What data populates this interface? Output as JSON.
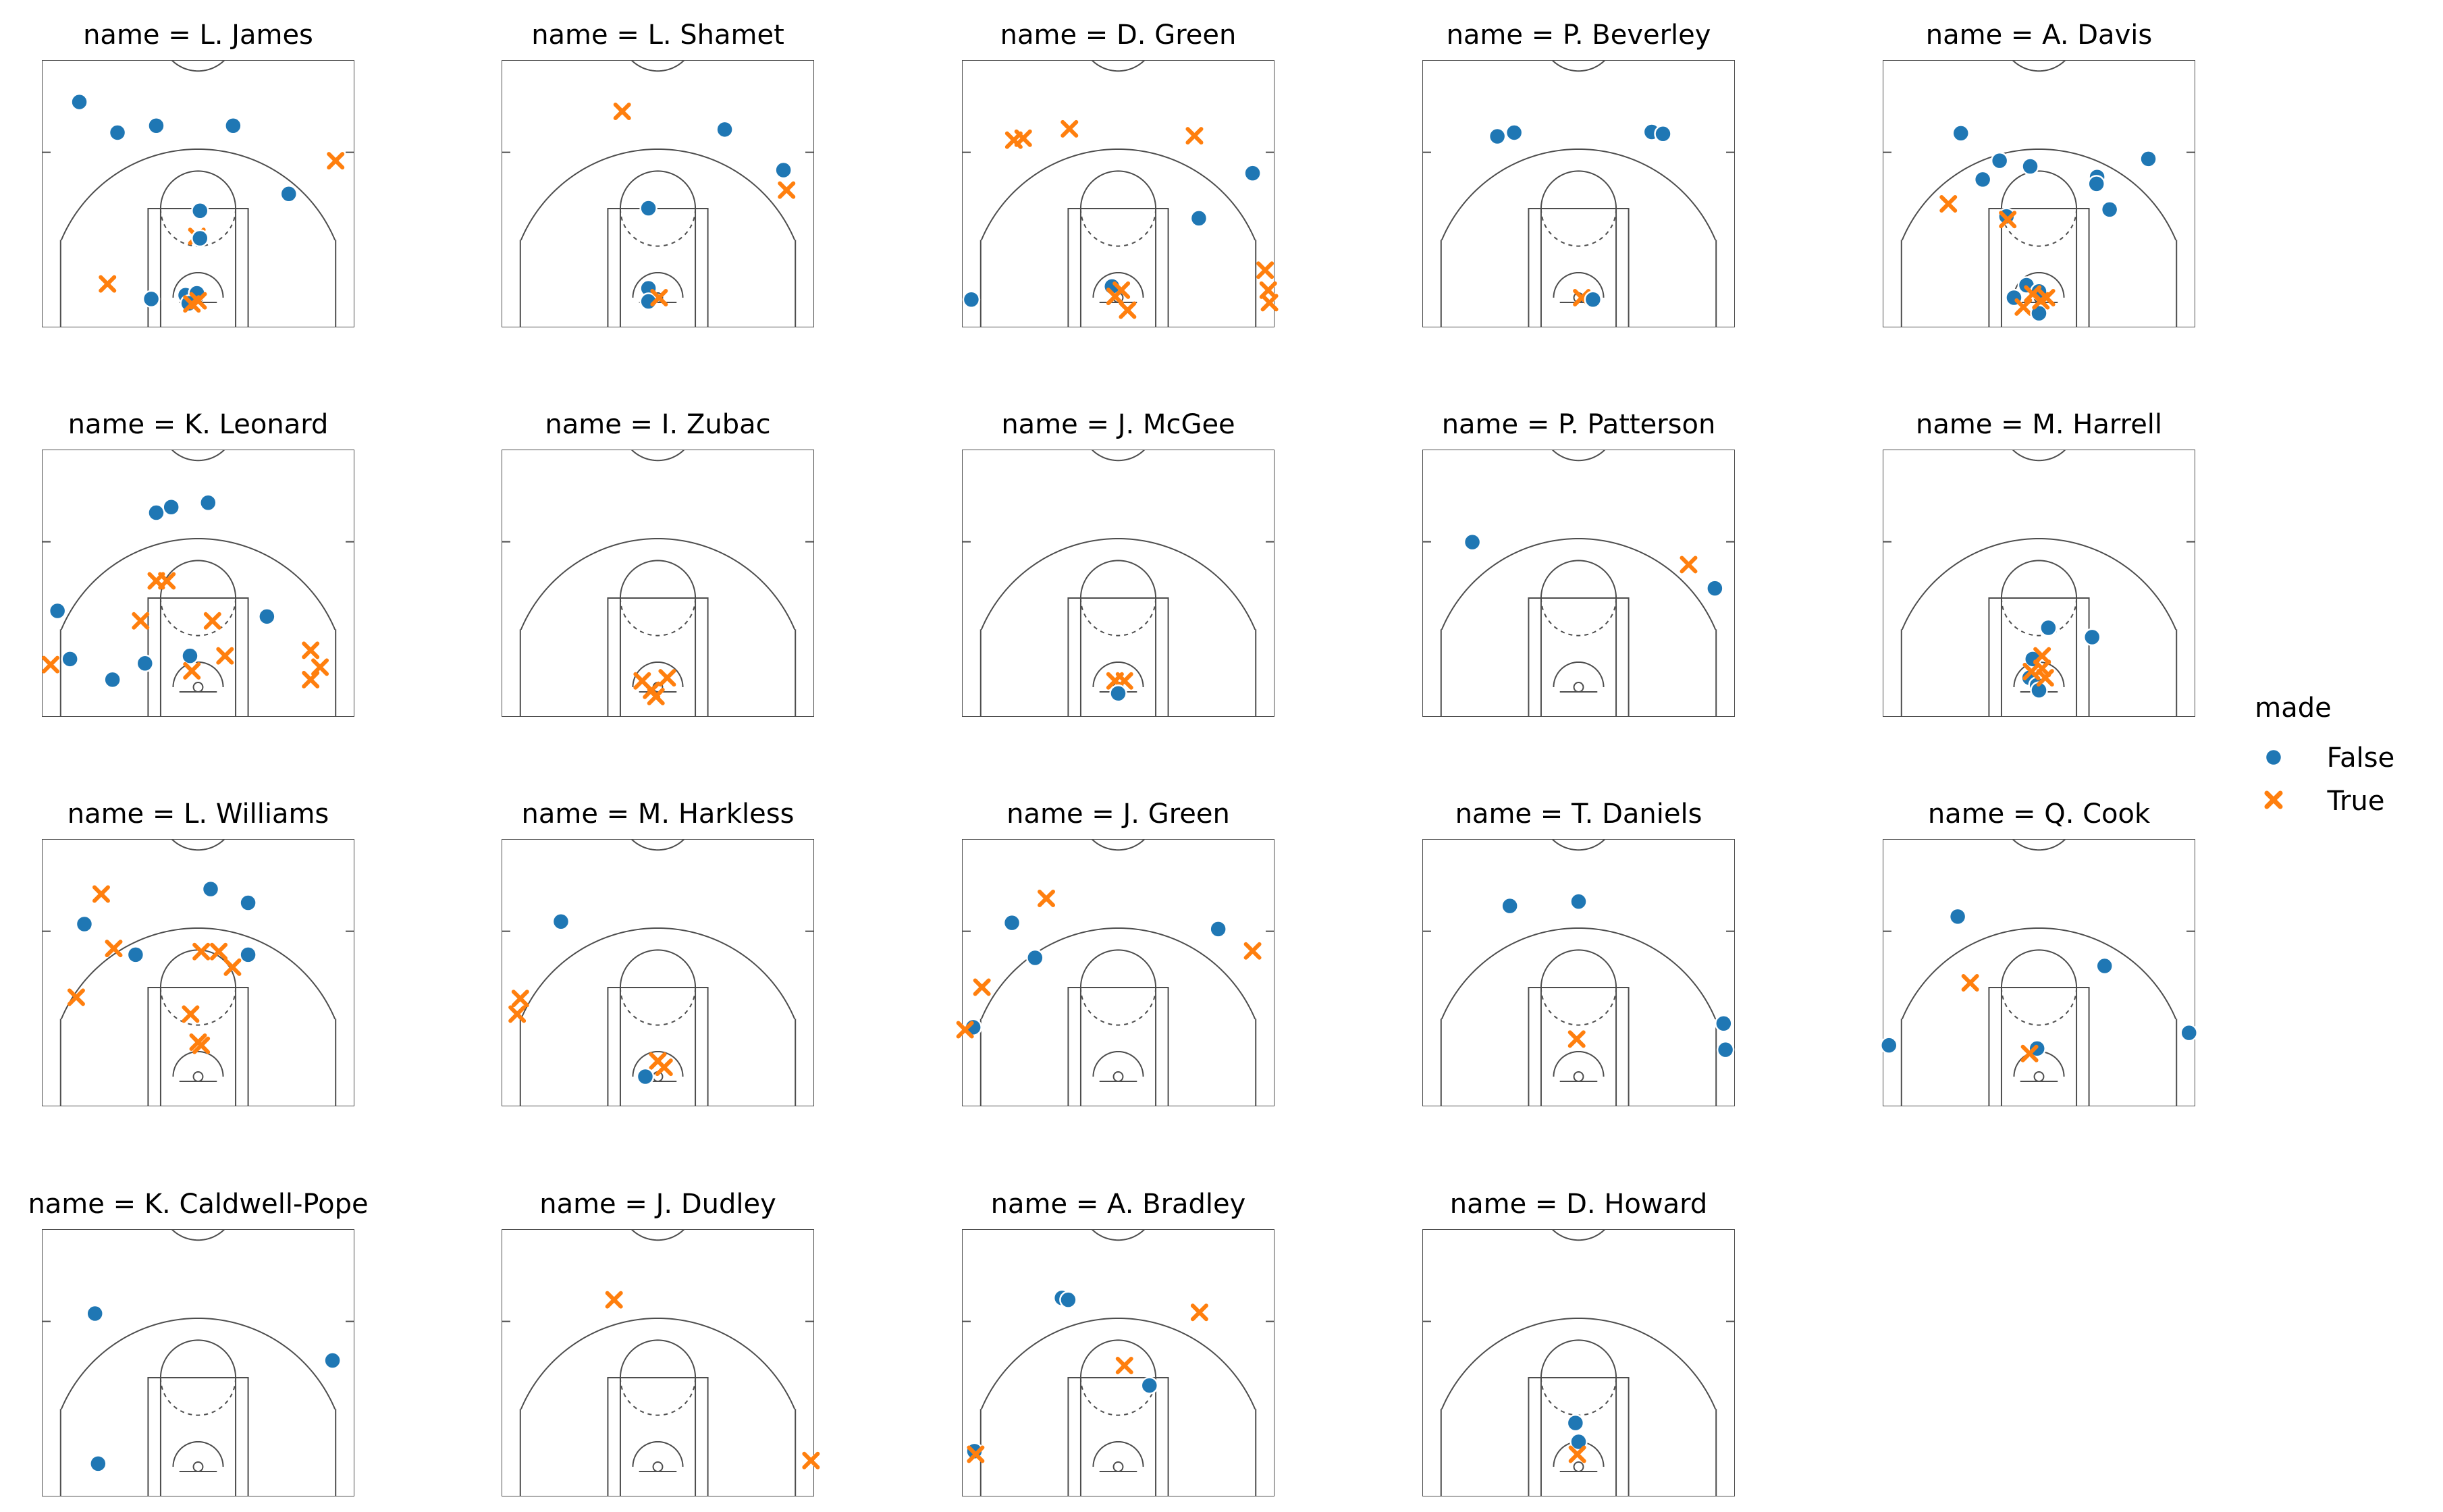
{
  "colors": {
    "False": "#1f77b4",
    "True": "#ff7f0e",
    "court_line": "#4d4d4d"
  },
  "legend": {
    "title": "made",
    "entries": [
      {
        "label": "False",
        "marker": "circle",
        "color": "#1f77b4"
      },
      {
        "label": "True",
        "marker": "x",
        "color": "#ff7f0e"
      }
    ]
  },
  "chart_data": {
    "type": "scatter",
    "facet_by": "name",
    "hue": "made",
    "marker_style": {
      "False": "circle",
      "True": "x"
    },
    "axes_visible": false,
    "grid": false,
    "legend_position": "right",
    "xlim": [
      -250,
      250
    ],
    "ylim": [
      -47.5,
      380
    ],
    "panels": [
      {
        "title": "name = L. James",
        "points": [
          {
            "x": -190,
            "y": 313,
            "made": false
          },
          {
            "x": -129,
            "y": 264,
            "made": false
          },
          {
            "x": -67,
            "y": 275,
            "made": false
          },
          {
            "x": 56,
            "y": 275,
            "made": false
          },
          {
            "x": 145,
            "y": 166,
            "made": false
          },
          {
            "x": 220,
            "y": 219,
            "made": true
          },
          {
            "x": 3,
            "y": 139,
            "made": false
          },
          {
            "x": -2,
            "y": 98,
            "made": true
          },
          {
            "x": 3,
            "y": 95,
            "made": false
          },
          {
            "x": -145,
            "y": 22,
            "made": true
          },
          {
            "x": -75,
            "y": -2,
            "made": false
          },
          {
            "x": -20,
            "y": 4,
            "made": false
          },
          {
            "x": -2,
            "y": 7,
            "made": false
          },
          {
            "x": -15,
            "y": -9,
            "made": false
          },
          {
            "x": -10,
            "y": -10,
            "made": true
          },
          {
            "x": 0,
            "y": -5,
            "made": true
          }
        ]
      },
      {
        "title": "name = L. Shamet",
        "points": [
          {
            "x": -57,
            "y": 298,
            "made": true
          },
          {
            "x": 107,
            "y": 269,
            "made": false
          },
          {
            "x": 201,
            "y": 204,
            "made": false
          },
          {
            "x": 206,
            "y": 172,
            "made": true
          },
          {
            "x": -15,
            "y": 143,
            "made": false
          },
          {
            "x": -15,
            "y": 15,
            "made": false
          },
          {
            "x": -15,
            "y": -6,
            "made": false
          },
          {
            "x": 2,
            "y": 0,
            "made": true
          }
        ]
      },
      {
        "title": "name = D. Green",
        "points": [
          {
            "x": -167,
            "y": 252,
            "made": true
          },
          {
            "x": -152,
            "y": 255,
            "made": true
          },
          {
            "x": -78,
            "y": 270,
            "made": true
          },
          {
            "x": 122,
            "y": 259,
            "made": true
          },
          {
            "x": 215,
            "y": 199,
            "made": false
          },
          {
            "x": 129,
            "y": 127,
            "made": false
          },
          {
            "x": -235,
            "y": -3,
            "made": false
          },
          {
            "x": 235,
            "y": 44,
            "made": true
          },
          {
            "x": 240,
            "y": 12,
            "made": true
          },
          {
            "x": 242,
            "y": -8,
            "made": true
          },
          {
            "x": -10,
            "y": 18,
            "made": false
          },
          {
            "x": 5,
            "y": 12,
            "made": true
          },
          {
            "x": -5,
            "y": 2,
            "made": true
          },
          {
            "x": 15,
            "y": -20,
            "made": true
          }
        ]
      },
      {
        "title": "name = P. Beverley",
        "points": [
          {
            "x": -130,
            "y": 258,
            "made": false
          },
          {
            "x": -103,
            "y": 264,
            "made": false
          },
          {
            "x": 117,
            "y": 265,
            "made": false
          },
          {
            "x": 135,
            "y": 262,
            "made": false
          },
          {
            "x": 5,
            "y": 0,
            "made": true
          },
          {
            "x": 23,
            "y": -3,
            "made": false
          }
        ]
      },
      {
        "title": "name = A. Davis",
        "points": [
          {
            "x": -125,
            "y": 263,
            "made": false
          },
          {
            "x": -63,
            "y": 219,
            "made": false
          },
          {
            "x": -90,
            "y": 189,
            "made": false
          },
          {
            "x": -14,
            "y": 210,
            "made": false
          },
          {
            "x": 93,
            "y": 193,
            "made": false
          },
          {
            "x": 92,
            "y": 182,
            "made": false
          },
          {
            "x": 175,
            "y": 222,
            "made": false
          },
          {
            "x": 113,
            "y": 141,
            "made": false
          },
          {
            "x": -145,
            "y": 150,
            "made": true
          },
          {
            "x": -52,
            "y": 130,
            "made": false
          },
          {
            "x": -50,
            "y": 125,
            "made": true
          },
          {
            "x": -40,
            "y": 0,
            "made": false
          },
          {
            "x": -20,
            "y": 20,
            "made": false
          },
          {
            "x": 0,
            "y": 10,
            "made": false
          },
          {
            "x": 12,
            "y": 0,
            "made": true
          },
          {
            "x": -25,
            "y": -15,
            "made": true
          },
          {
            "x": 0,
            "y": -25,
            "made": false
          },
          {
            "x": -10,
            "y": 6,
            "made": true
          },
          {
            "x": 3,
            "y": -5,
            "made": true
          }
        ]
      },
      {
        "title": "name = K. Leonard",
        "points": [
          {
            "x": -67,
            "y": 279,
            "made": false
          },
          {
            "x": -43,
            "y": 288,
            "made": false
          },
          {
            "x": 16,
            "y": 295,
            "made": false
          },
          {
            "x": -67,
            "y": 170,
            "made": true
          },
          {
            "x": -50,
            "y": 170,
            "made": true
          },
          {
            "x": -225,
            "y": 122,
            "made": false
          },
          {
            "x": -205,
            "y": 45,
            "made": false
          },
          {
            "x": -236,
            "y": 36,
            "made": true
          },
          {
            "x": -92,
            "y": 106,
            "made": true
          },
          {
            "x": 23,
            "y": 106,
            "made": true
          },
          {
            "x": 110,
            "y": 113,
            "made": false
          },
          {
            "x": -85,
            "y": 38,
            "made": false
          },
          {
            "x": -13,
            "y": 50,
            "made": false
          },
          {
            "x": 43,
            "y": 50,
            "made": true
          },
          {
            "x": -10,
            "y": 26,
            "made": true
          },
          {
            "x": -137,
            "y": 12,
            "made": false
          },
          {
            "x": 180,
            "y": 59,
            "made": true
          },
          {
            "x": 195,
            "y": 32,
            "made": true
          },
          {
            "x": 180,
            "y": 12,
            "made": true
          }
        ]
      },
      {
        "title": "name = I. Zubac",
        "points": [
          {
            "x": -25,
            "y": 10,
            "made": true
          },
          {
            "x": 15,
            "y": 15,
            "made": true
          },
          {
            "x": -10,
            "y": -5,
            "made": true
          },
          {
            "x": -3,
            "y": -15,
            "made": true
          }
        ]
      },
      {
        "title": "name = J. McGee",
        "points": [
          {
            "x": -5,
            "y": 10,
            "made": true
          },
          {
            "x": 10,
            "y": 10,
            "made": true
          },
          {
            "x": 0,
            "y": -10,
            "made": false
          }
        ]
      },
      {
        "title": "name = P. Patterson",
        "points": [
          {
            "x": -170,
            "y": 232,
            "made": false
          },
          {
            "x": 176,
            "y": 196,
            "made": true
          },
          {
            "x": 218,
            "y": 158,
            "made": false
          }
        ]
      },
      {
        "title": "name = M. Harrell",
        "points": [
          {
            "x": 15,
            "y": 95,
            "made": false
          },
          {
            "x": 85,
            "y": 80,
            "made": false
          },
          {
            "x": -10,
            "y": 45,
            "made": false
          },
          {
            "x": 5,
            "y": 50,
            "made": true
          },
          {
            "x": -15,
            "y": 15,
            "made": false
          },
          {
            "x": -3,
            "y": 3,
            "made": false
          },
          {
            "x": 0,
            "y": -5,
            "made": false
          },
          {
            "x": -12,
            "y": 25,
            "made": true
          },
          {
            "x": 5,
            "y": 30,
            "made": true
          },
          {
            "x": 10,
            "y": 15,
            "made": true
          }
        ]
      },
      {
        "title": "name = L. Williams",
        "points": [
          {
            "x": -155,
            "y": 292,
            "made": true
          },
          {
            "x": 20,
            "y": 300,
            "made": false
          },
          {
            "x": 80,
            "y": 278,
            "made": false
          },
          {
            "x": -182,
            "y": 244,
            "made": false
          },
          {
            "x": -135,
            "y": 205,
            "made": true
          },
          {
            "x": -100,
            "y": 195,
            "made": false
          },
          {
            "x": 5,
            "y": 200,
            "made": true
          },
          {
            "x": 33,
            "y": 200,
            "made": true
          },
          {
            "x": 80,
            "y": 195,
            "made": false
          },
          {
            "x": 55,
            "y": 175,
            "made": true
          },
          {
            "x": -195,
            "y": 127,
            "made": true
          },
          {
            "x": -12,
            "y": 100,
            "made": true
          },
          {
            "x": 0,
            "y": 55,
            "made": true
          },
          {
            "x": 5,
            "y": 50,
            "made": true
          }
        ]
      },
      {
        "title": "name = M. Harkless",
        "points": [
          {
            "x": -155,
            "y": 248,
            "made": false
          },
          {
            "x": -220,
            "y": 125,
            "made": true
          },
          {
            "x": -225,
            "y": 100,
            "made": true
          },
          {
            "x": 0,
            "y": 25,
            "made": true
          },
          {
            "x": 10,
            "y": 15,
            "made": true
          },
          {
            "x": -20,
            "y": 0,
            "made": false
          }
        ]
      },
      {
        "title": "name = J. Green",
        "points": [
          {
            "x": -115,
            "y": 285,
            "made": true
          },
          {
            "x": -170,
            "y": 246,
            "made": false
          },
          {
            "x": -133,
            "y": 190,
            "made": false
          },
          {
            "x": 160,
            "y": 236,
            "made": false
          },
          {
            "x": 215,
            "y": 201,
            "made": true
          },
          {
            "x": -218,
            "y": 143,
            "made": true
          },
          {
            "x": -232,
            "y": 79,
            "made": false
          },
          {
            "x": -245,
            "y": 75,
            "made": true
          }
        ]
      },
      {
        "title": "name = T. Daniels",
        "points": [
          {
            "x": -110,
            "y": 273,
            "made": false
          },
          {
            "x": 0,
            "y": 280,
            "made": false
          },
          {
            "x": 232,
            "y": 85,
            "made": false
          },
          {
            "x": 235,
            "y": 43,
            "made": false
          },
          {
            "x": -3,
            "y": 60,
            "made": true
          }
        ]
      },
      {
        "title": "name = Q. Cook",
        "points": [
          {
            "x": -130,
            "y": 256,
            "made": false
          },
          {
            "x": -110,
            "y": 150,
            "made": true
          },
          {
            "x": 105,
            "y": 177,
            "made": false
          },
          {
            "x": -240,
            "y": 50,
            "made": false
          },
          {
            "x": 240,
            "y": 70,
            "made": false
          },
          {
            "x": -3,
            "y": 45,
            "made": false
          },
          {
            "x": -15,
            "y": 37,
            "made": true
          }
        ]
      },
      {
        "title": "name = K. Caldwell-Pope",
        "points": [
          {
            "x": -165,
            "y": 245,
            "made": false
          },
          {
            "x": 215,
            "y": 170,
            "made": false
          },
          {
            "x": -160,
            "y": 5,
            "made": false
          }
        ]
      },
      {
        "title": "name = J. Dudley",
        "points": [
          {
            "x": -70,
            "y": 267,
            "made": true
          },
          {
            "x": 245,
            "y": 10,
            "made": true
          }
        ]
      },
      {
        "title": "name = A. Bradley",
        "points": [
          {
            "x": -90,
            "y": 270,
            "made": false
          },
          {
            "x": -80,
            "y": 267,
            "made": false
          },
          {
            "x": 130,
            "y": 247,
            "made": true
          },
          {
            "x": 10,
            "y": 162,
            "made": true
          },
          {
            "x": 50,
            "y": 130,
            "made": false
          },
          {
            "x": -230,
            "y": 25,
            "made": false
          },
          {
            "x": -228,
            "y": 20,
            "made": true
          }
        ]
      },
      {
        "title": "name = D. Howard",
        "points": [
          {
            "x": -5,
            "y": 70,
            "made": false
          },
          {
            "x": 0,
            "y": 40,
            "made": false
          },
          {
            "x": -2,
            "y": 20,
            "made": true
          }
        ]
      }
    ]
  }
}
